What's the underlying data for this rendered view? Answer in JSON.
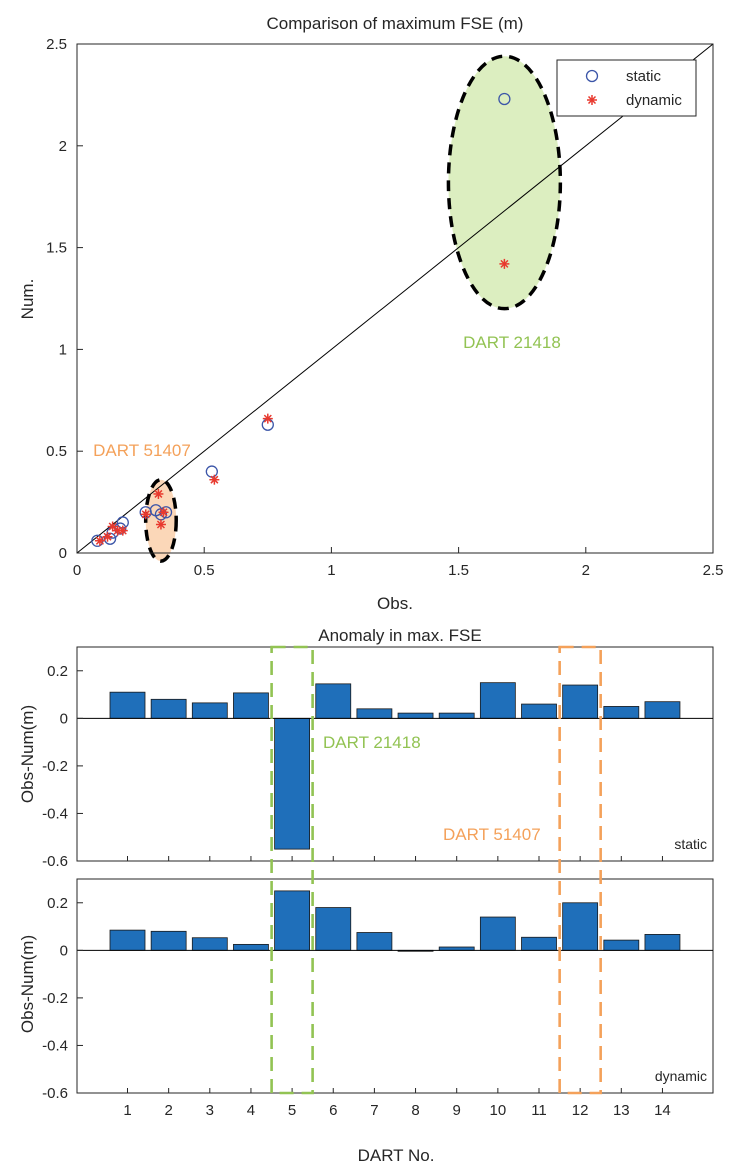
{
  "chart_data": [
    {
      "type": "scatter",
      "title": "Comparison of maximum FSE (m)",
      "xlabel": "Obs.",
      "ylabel": "Num.",
      "xlim": [
        0,
        2.5
      ],
      "ylim": [
        0,
        2.5
      ],
      "xticks": [
        "0",
        "0.5",
        "1",
        "1.5",
        "2",
        "2.5"
      ],
      "yticks": [
        "0",
        "0.5",
        "1",
        "1.5",
        "2",
        "2.5"
      ],
      "reference_line": "y = x",
      "legend": {
        "position": "top-right",
        "entries": [
          "static",
          "dynamic"
        ]
      },
      "series": [
        {
          "name": "static",
          "marker": "circle",
          "color": "#3b55a8",
          "x": [
            0.08,
            0.13,
            0.14,
            0.17,
            0.18,
            0.27,
            0.31,
            0.33,
            0.35,
            0.53,
            0.75,
            1.68
          ],
          "y": [
            0.06,
            0.07,
            0.1,
            0.12,
            0.15,
            0.2,
            0.21,
            0.19,
            0.2,
            0.4,
            0.63,
            2.23
          ]
        },
        {
          "name": "dynamic",
          "marker": "asterisk",
          "color": "#e8392e",
          "x": [
            0.09,
            0.12,
            0.14,
            0.16,
            0.18,
            0.27,
            0.32,
            0.33,
            0.34,
            0.54,
            0.75,
            1.68
          ],
          "y": [
            0.06,
            0.08,
            0.13,
            0.11,
            0.11,
            0.19,
            0.29,
            0.14,
            0.2,
            0.36,
            0.66,
            1.42
          ]
        }
      ],
      "annotations": [
        {
          "text": "DART 21418",
          "ellipse_center": [
            1.68,
            1.82
          ],
          "ellipse_radius": [
            0.22,
            0.62
          ],
          "fill": "#dceec0"
        },
        {
          "text": "DART 51407",
          "ellipse_center": [
            0.33,
            0.16
          ],
          "ellipse_radius": [
            0.06,
            0.2
          ],
          "fill": "#fbd7b8"
        }
      ]
    },
    {
      "type": "bar",
      "title": "Anomaly in max. FSE",
      "xlabel": "DART No.",
      "ylabel": "Obs-Num(m)",
      "panel_label": "static",
      "ylim": [
        -0.6,
        0.3
      ],
      "yticks": [
        "0.2",
        "0",
        "-0.2",
        "-0.4",
        "-0.6"
      ],
      "categories": [
        "1",
        "2",
        "3",
        "4",
        "5",
        "6",
        "7",
        "8",
        "9",
        "10",
        "11",
        "12",
        "13",
        "14"
      ],
      "values": [
        0.11,
        0.08,
        0.065,
        0.107,
        -0.55,
        0.145,
        0.04,
        0.022,
        0.022,
        0.15,
        0.06,
        0.14,
        0.05,
        0.07
      ]
    },
    {
      "type": "bar",
      "xlabel": "DART No.",
      "ylabel": "Obs-Num(m)",
      "panel_label": "dynamic",
      "ylim": [
        -0.6,
        0.3
      ],
      "yticks": [
        "0.2",
        "0",
        "-0.2",
        "-0.4",
        "-0.6"
      ],
      "categories": [
        "1",
        "2",
        "3",
        "4",
        "5",
        "6",
        "7",
        "8",
        "9",
        "10",
        "11",
        "12",
        "13",
        "14"
      ],
      "values": [
        0.085,
        0.08,
        0.053,
        0.025,
        0.25,
        0.18,
        0.075,
        -0.004,
        0.014,
        0.14,
        0.055,
        0.2,
        0.043,
        0.067
      ]
    }
  ],
  "highlights": [
    {
      "text": "DART 21418",
      "category": "5",
      "color": "#92c353"
    },
    {
      "text": "DART 51407",
      "category": "12",
      "color": "#f4a15a"
    }
  ]
}
